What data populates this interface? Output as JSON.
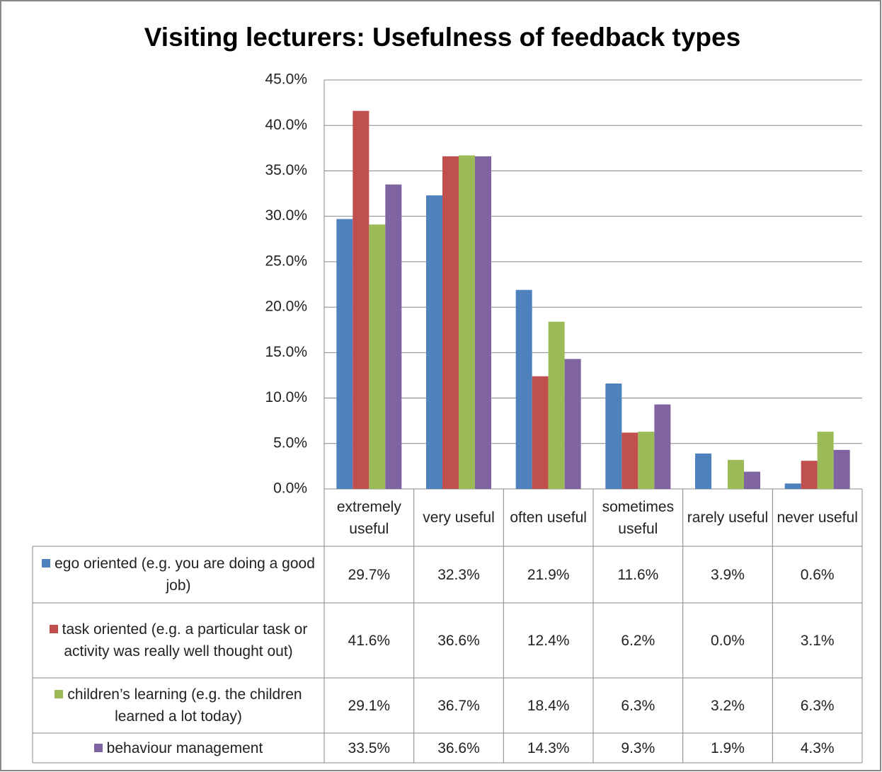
{
  "chart_data": {
    "type": "bar",
    "title": "Visiting lecturers: Usefulness  of feedback types",
    "categories": [
      "extremely useful",
      "very useful",
      "often useful",
      "sometimes useful",
      "rarely useful",
      "never useful"
    ],
    "series": [
      {
        "name": "ego oriented (e.g. you are doing a good job)",
        "color": "#4f81bd",
        "values": [
          29.7,
          32.3,
          21.9,
          11.6,
          3.9,
          0.6
        ],
        "value_labels": [
          "29.7%",
          "32.3%",
          "21.9%",
          "11.6%",
          "3.9%",
          "0.6%"
        ]
      },
      {
        "name": "task oriented (e.g. a particular task or activity was really well thought out)",
        "color": "#c0504d",
        "values": [
          41.6,
          36.6,
          12.4,
          6.2,
          0.0,
          3.1
        ],
        "value_labels": [
          "41.6%",
          "36.6%",
          "12.4%",
          "6.2%",
          "0.0%",
          "3.1%"
        ]
      },
      {
        "name": "children’s learning (e.g. the children learned a lot today)",
        "color": "#9bbb59",
        "values": [
          29.1,
          36.7,
          18.4,
          6.3,
          3.2,
          6.3
        ],
        "value_labels": [
          "29.1%",
          "36.7%",
          "18.4%",
          "6.3%",
          "3.2%",
          "6.3%"
        ]
      },
      {
        "name": "behaviour management",
        "color": "#8064a2",
        "values": [
          33.5,
          36.6,
          14.3,
          9.3,
          1.9,
          4.3
        ],
        "value_labels": [
          "33.5%",
          "36.6%",
          "14.3%",
          "9.3%",
          "1.9%",
          "4.3%"
        ]
      }
    ],
    "ylim": [
      0,
      45
    ],
    "yticks": [
      {
        "value": 0,
        "label": "0.0%"
      },
      {
        "value": 5,
        "label": "5.0%"
      },
      {
        "value": 10,
        "label": "10.0%"
      },
      {
        "value": 15,
        "label": "15.0%"
      },
      {
        "value": 20,
        "label": "20.0%"
      },
      {
        "value": 25,
        "label": "25.0%"
      },
      {
        "value": 30,
        "label": "30.0%"
      },
      {
        "value": 35,
        "label": "35.0%"
      },
      {
        "value": 40,
        "label": "40.0%"
      },
      {
        "value": 45,
        "label": "45.0%"
      }
    ],
    "grid": true
  }
}
